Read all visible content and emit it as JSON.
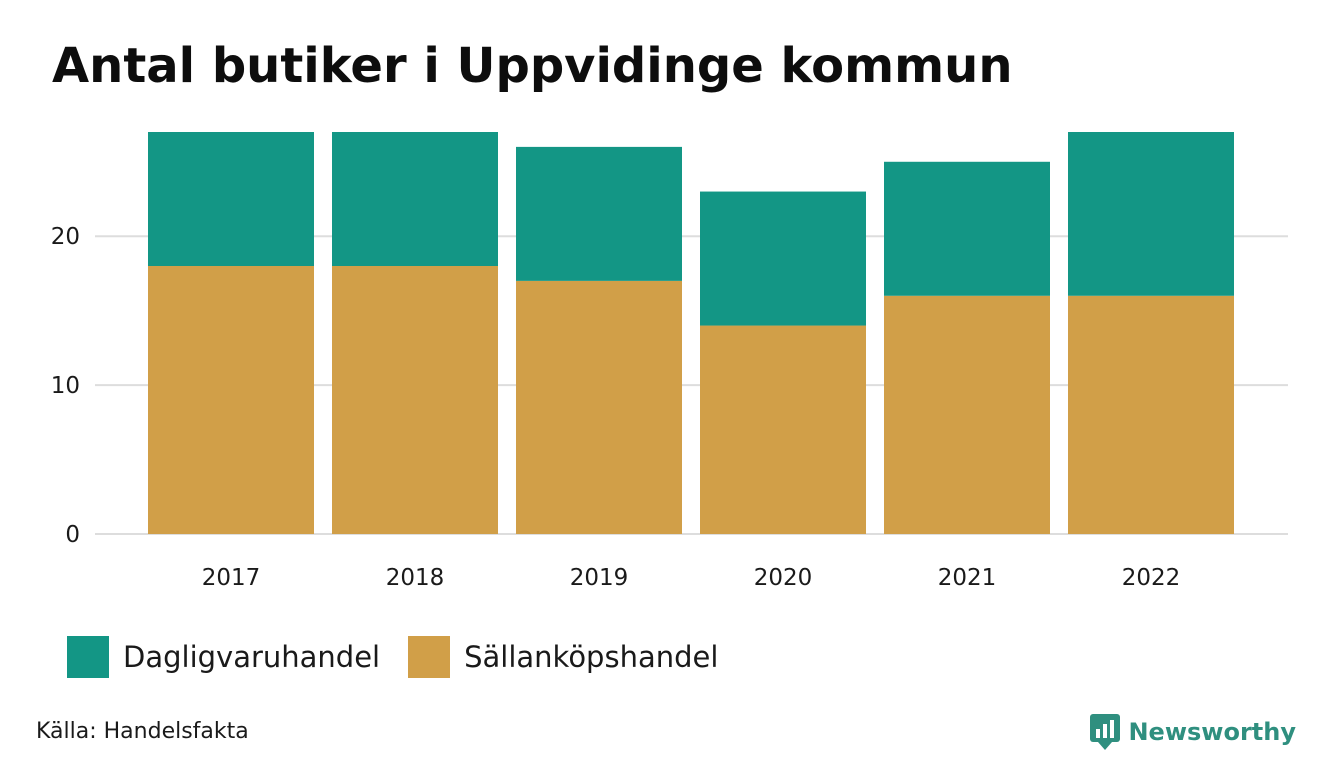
{
  "title": "Antal butiker i Uppvidinge kommun",
  "source": "Källa: Handelsfakta",
  "brand": "Newsworthy",
  "colors": {
    "dagligvaruhandel": "#139685",
    "sallankopshandel": "#d19f48",
    "grid": "#dddddd",
    "brand": "#2f8f7f"
  },
  "chart_data": {
    "type": "bar",
    "stacked": true,
    "categories": [
      "2017",
      "2018",
      "2019",
      "2020",
      "2021",
      "2022"
    ],
    "series": [
      {
        "name": "Sällanköpshandel",
        "values": [
          18,
          18,
          17,
          14,
          16,
          16
        ]
      },
      {
        "name": "Dagligvaruhandel",
        "values": [
          9,
          9,
          9,
          9,
          9,
          11
        ]
      }
    ],
    "ylim": [
      0,
      27
    ],
    "yticks": [
      0,
      10,
      20
    ],
    "grid": true,
    "legend_position": "bottom-left"
  },
  "legend": [
    {
      "label": "Dagligvaruhandel",
      "color": "#139685"
    },
    {
      "label": "Sällanköpshandel",
      "color": "#d19f48"
    }
  ]
}
